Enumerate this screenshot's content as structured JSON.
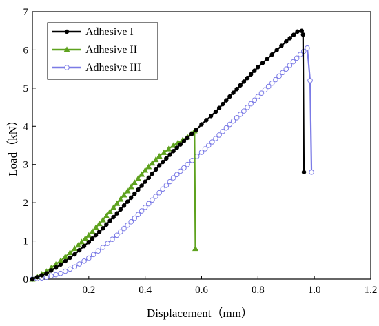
{
  "chart_data": {
    "type": "line",
    "title": "",
    "xlabel": "Displacement（mm）",
    "ylabel": "Load（kN）",
    "xlim": [
      0.0,
      1.2
    ],
    "ylim": [
      0,
      7
    ],
    "xticks": [
      "0.2",
      "0.4",
      "0.6",
      "0.8",
      "1.0",
      "1.2"
    ],
    "yticks": [
      "0",
      "1",
      "2",
      "3",
      "4",
      "5",
      "6",
      "7"
    ],
    "grid": false,
    "legend_position": "top-left",
    "series": [
      {
        "name": "Adhesive I",
        "color": "#000000",
        "marker": "filled-circle",
        "x": [
          0.0,
          0.05,
          0.1,
          0.15,
          0.2,
          0.25,
          0.3,
          0.35,
          0.4,
          0.45,
          0.5,
          0.55,
          0.58,
          0.6,
          0.65,
          0.7,
          0.75,
          0.8,
          0.85,
          0.9,
          0.94,
          0.955,
          0.96,
          0.963
        ],
        "y": [
          0.0,
          0.15,
          0.38,
          0.65,
          0.97,
          1.33,
          1.72,
          2.13,
          2.55,
          2.97,
          3.35,
          3.7,
          3.9,
          4.05,
          4.38,
          4.78,
          5.17,
          5.55,
          5.88,
          6.22,
          6.48,
          6.5,
          6.4,
          2.8
        ]
      },
      {
        "name": "Adhesive II",
        "color": "#5ea21e",
        "marker": "filled-triangle",
        "x": [
          0.0,
          0.05,
          0.1,
          0.15,
          0.2,
          0.25,
          0.3,
          0.35,
          0.4,
          0.45,
          0.5,
          0.55,
          0.575,
          0.578
        ],
        "y": [
          0.0,
          0.2,
          0.48,
          0.8,
          1.15,
          1.55,
          1.98,
          2.42,
          2.85,
          3.22,
          3.5,
          3.72,
          3.88,
          0.8
        ]
      },
      {
        "name": "Adhesive III",
        "color": "#7b7be6",
        "marker": "open-circle",
        "x": [
          0.0,
          0.05,
          0.1,
          0.15,
          0.2,
          0.25,
          0.3,
          0.35,
          0.4,
          0.45,
          0.5,
          0.55,
          0.6,
          0.65,
          0.7,
          0.75,
          0.8,
          0.85,
          0.9,
          0.95,
          0.975,
          0.985,
          0.99
        ],
        "y": [
          0.0,
          0.05,
          0.15,
          0.32,
          0.55,
          0.83,
          1.15,
          1.5,
          1.88,
          2.26,
          2.65,
          3.0,
          3.32,
          3.68,
          4.05,
          4.4,
          4.78,
          5.13,
          5.5,
          5.88,
          6.05,
          5.2,
          2.8
        ]
      }
    ]
  }
}
